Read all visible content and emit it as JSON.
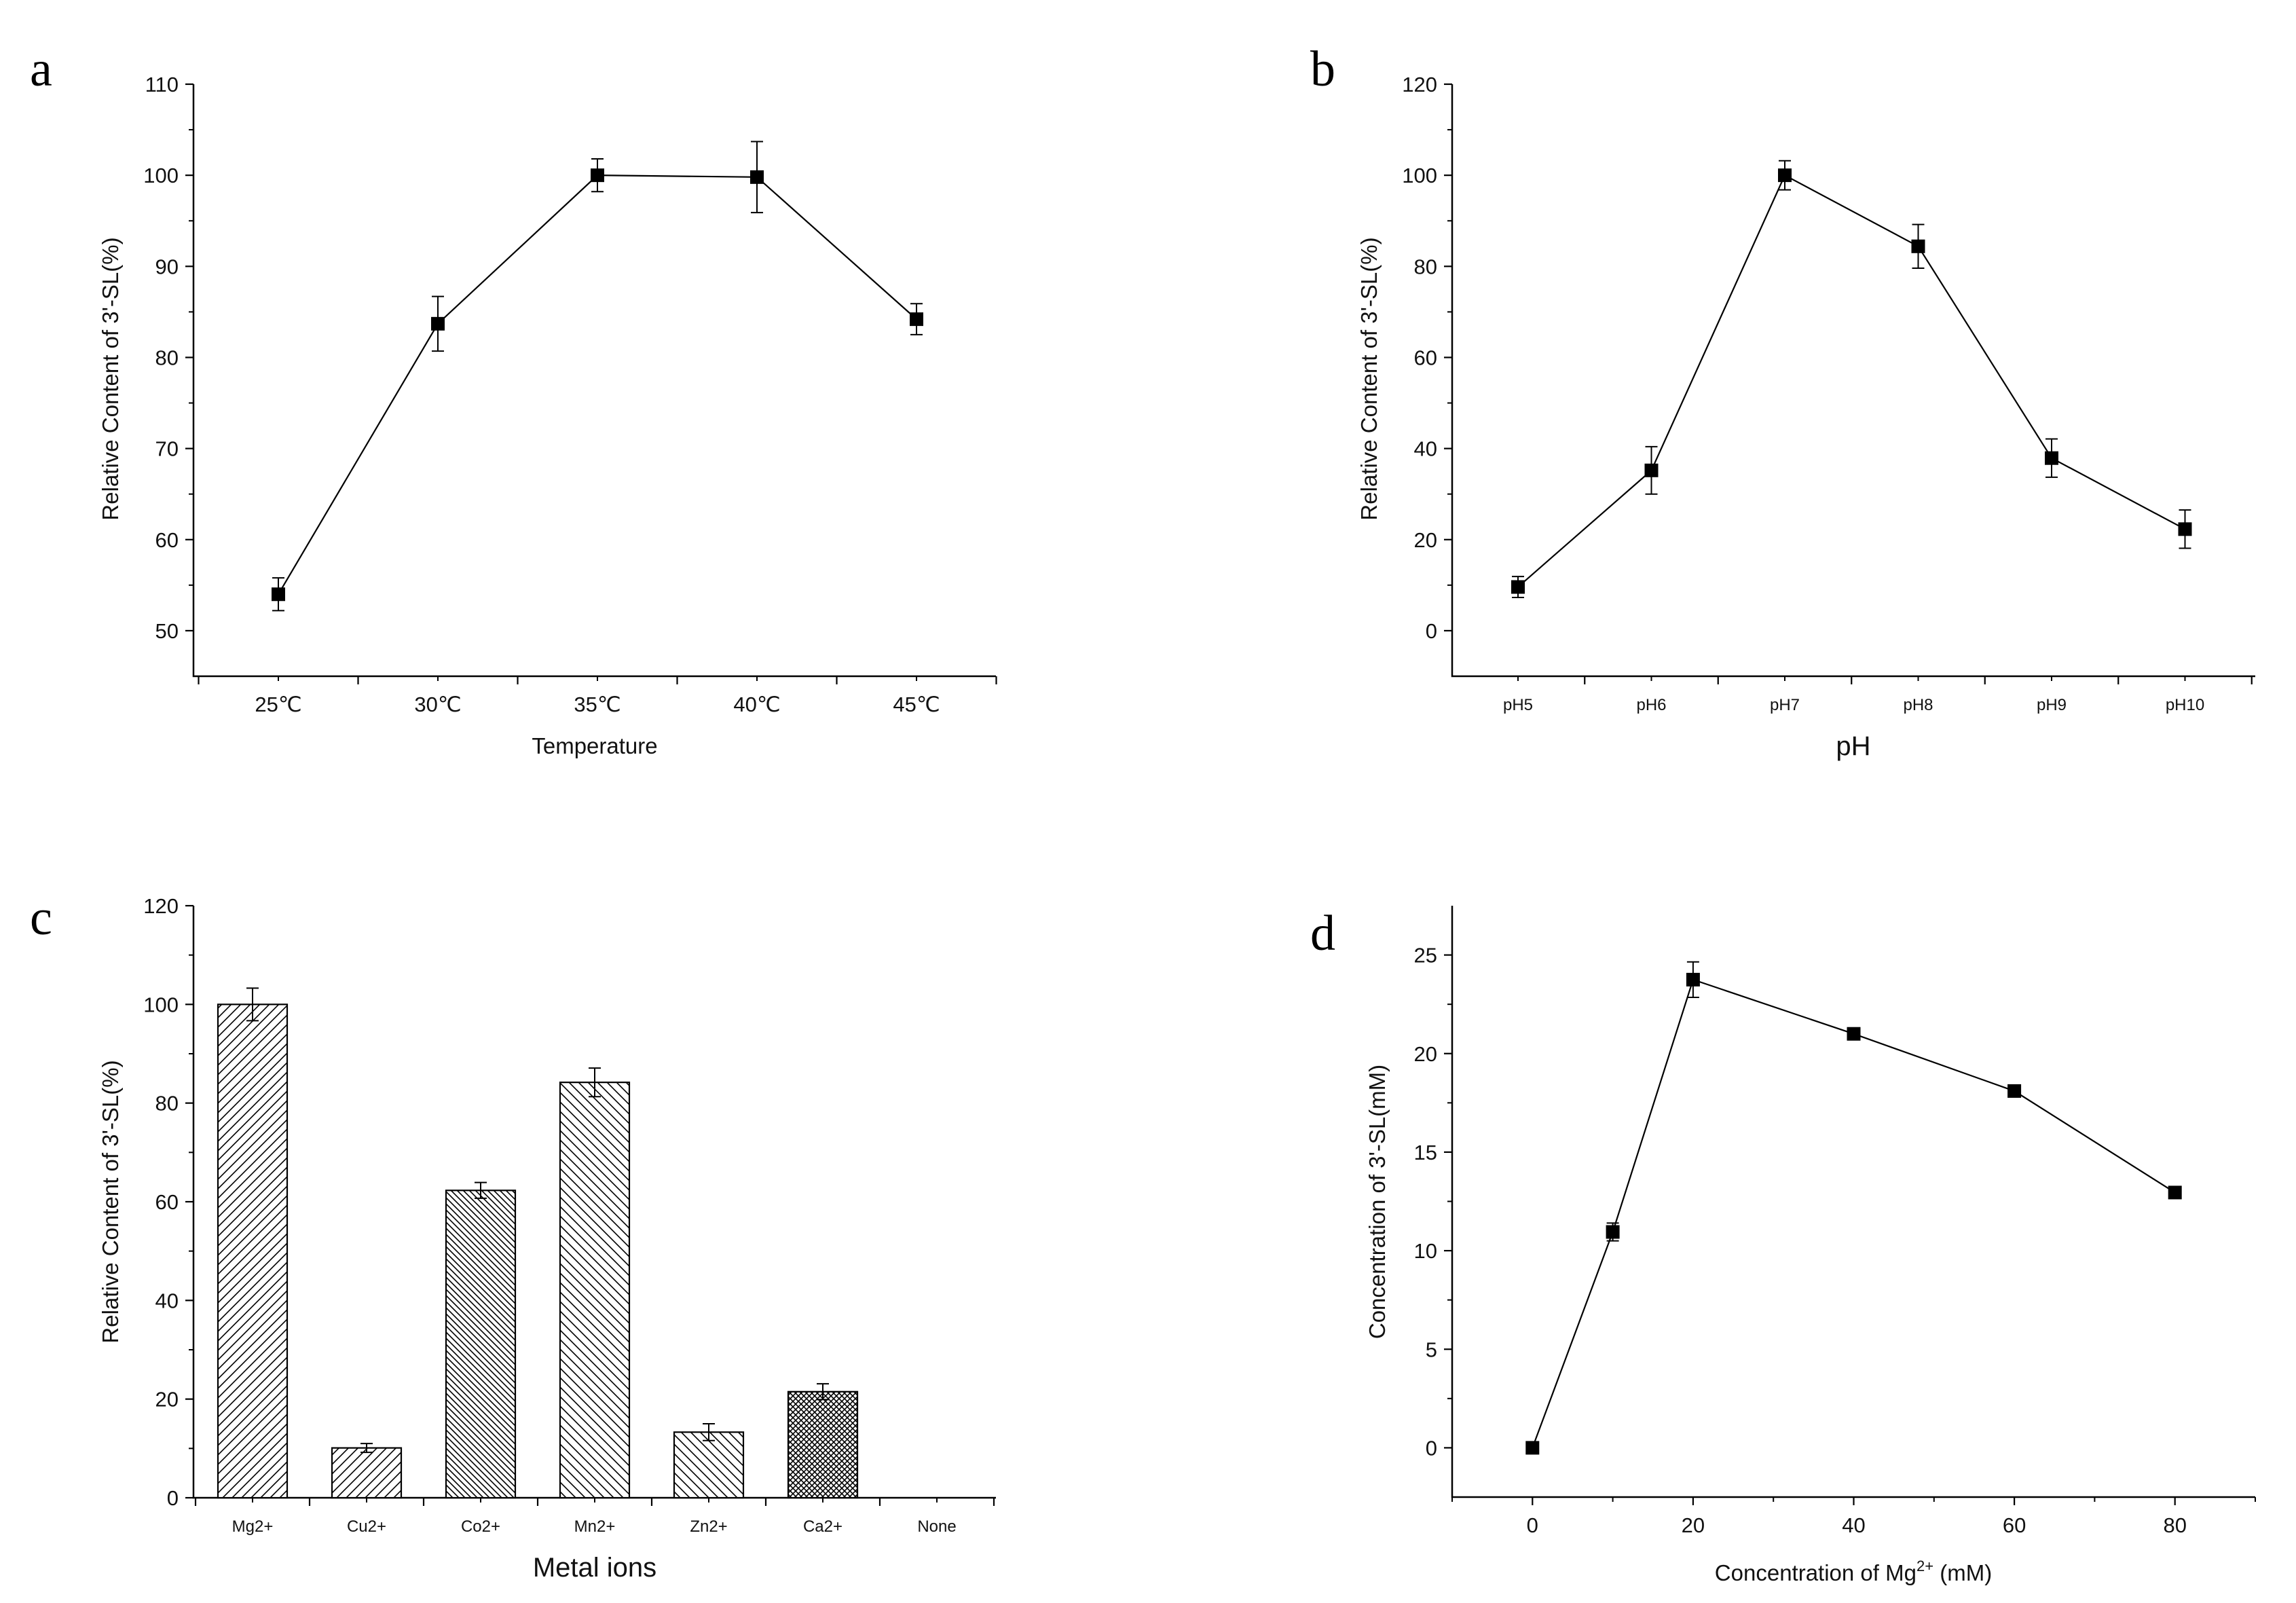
{
  "figure": {
    "panels": [
      "a",
      "b",
      "c",
      "d"
    ]
  },
  "chart_data": [
    {
      "panel": "a",
      "type": "line",
      "title": "",
      "xlabel": "Temperature",
      "ylabel": "Relative Content of 3'-SL(%)",
      "categories": [
        "25℃",
        "30℃",
        "35℃",
        "40℃",
        "45℃"
      ],
      "values": [
        54.0,
        83.7,
        100.0,
        99.8,
        84.2
      ],
      "errors": [
        1.8,
        3.0,
        1.8,
        3.9,
        1.7
      ],
      "ylim": [
        45,
        110
      ],
      "yticks": [
        50,
        60,
        70,
        80,
        90,
        100,
        110
      ],
      "grid": false
    },
    {
      "panel": "b",
      "type": "line",
      "title": "",
      "xlabel": "pH",
      "ylabel": "Relative Content of 3'-SL(%)",
      "categories": [
        "pH5",
        "pH6",
        "pH7",
        "pH8",
        "pH9",
        "pH10"
      ],
      "values": [
        9.6,
        35.2,
        100.0,
        84.4,
        37.9,
        22.3
      ],
      "errors": [
        2.3,
        5.2,
        3.2,
        4.8,
        4.2,
        4.2
      ],
      "ylim": [
        -10,
        120
      ],
      "yticks": [
        0,
        20,
        40,
        60,
        80,
        100,
        120
      ],
      "grid": false
    },
    {
      "panel": "c",
      "type": "bar",
      "title": "",
      "xlabel": "Metal ions",
      "ylabel": "Relative Content of 3'-SL(%)",
      "categories": [
        "Mg2+",
        "Cu2+",
        "Co2+",
        "Mn2+",
        "Zn2+",
        "Ca2+",
        "None"
      ],
      "values": [
        100.0,
        10.1,
        62.3,
        84.2,
        13.3,
        21.5,
        0
      ],
      "errors": [
        3.3,
        0.9,
        1.6,
        2.9,
        1.7,
        1.6,
        0
      ],
      "patterns": [
        "diag-right",
        "diag-right",
        "diag-left-dense",
        "diag-left",
        "diag-left",
        "crosshatch",
        "none"
      ],
      "ylim": [
        0,
        120
      ],
      "yticks": [
        0,
        20,
        40,
        60,
        80,
        100,
        120
      ],
      "grid": false
    },
    {
      "panel": "d",
      "type": "line",
      "title": "",
      "xlabel": "Concentration of Mg",
      "xlabel_sup": "2+",
      "xlabel_suffix": " (mM)",
      "ylabel": "Concentration of 3'-SL(mM)",
      "x": [
        0,
        10,
        20,
        40,
        60,
        80
      ],
      "values": [
        0.0,
        10.95,
        23.75,
        21.0,
        18.1,
        12.95
      ],
      "errors": [
        0,
        0.45,
        0.9,
        0.2,
        0.2,
        0.2
      ],
      "xlim": [
        -10,
        90
      ],
      "xticks": [
        0,
        20,
        40,
        60,
        80
      ],
      "ylim": [
        -2.5,
        27.5
      ],
      "yticks": [
        0,
        5,
        10,
        15,
        20,
        25
      ],
      "grid": false
    }
  ]
}
